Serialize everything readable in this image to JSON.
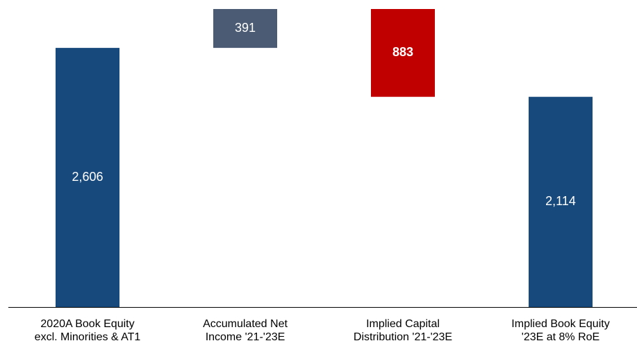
{
  "chart_data": {
    "type": "waterfall",
    "categories": [
      "2020A Book Equity\nexcl. Minorities & AT1",
      "Accumulated Net\nIncome '21-'23E",
      "Implied Capital\nDistribution '21-'23E",
      "Implied Book Equity\n'23E at 8% RoE"
    ],
    "values": [
      2606,
      391,
      -883,
      2114
    ],
    "value_labels": [
      "2,606",
      "391",
      "883",
      "2,114"
    ],
    "colors": [
      "#17497d",
      "#4a5b73",
      "#c00000",
      "#17497d"
    ]
  }
}
